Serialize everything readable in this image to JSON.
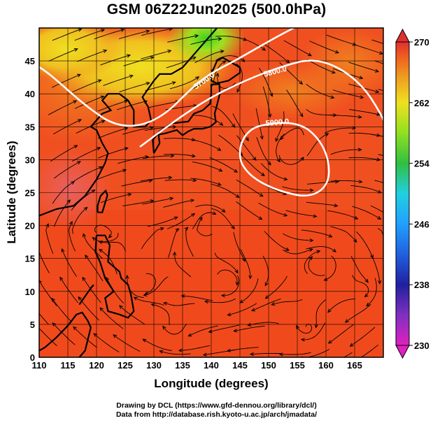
{
  "title": "GSM 06Z22Jun2025 (500.0hPa)",
  "axes": {
    "xlabel": "Longitude (degrees)",
    "ylabel": "Latitude  (degrees)",
    "xticks": [
      "110",
      "115",
      "120",
      "125",
      "130",
      "135",
      "140",
      "145",
      "150",
      "155",
      "160",
      "165"
    ],
    "yticks": [
      "0",
      "5",
      "10",
      "15",
      "20",
      "25",
      "30",
      "35",
      "40",
      "45"
    ],
    "xlim": [
      110,
      170
    ],
    "ylim": [
      0,
      50
    ]
  },
  "colorbar": {
    "ticks": [
      "230",
      "238",
      "246",
      "254",
      "262",
      "270"
    ],
    "range": [
      230,
      270
    ],
    "colors": [
      "#e020c0",
      "#2020a0",
      "#2080ff",
      "#20d0e0",
      "#30c030",
      "#a0e020",
      "#f0e020",
      "#f0a020",
      "#f05020",
      "#e03030"
    ]
  },
  "contours": [
    {
      "label": "5700.0",
      "lon": 138.5,
      "lat": 43.5
    },
    {
      "label": "5800.0",
      "lon": 150.5,
      "lat": 43.8
    },
    {
      "label": "5900.0",
      "lon": 152.5,
      "lat": 36.7
    }
  ],
  "credit": {
    "line1": "Drawing by DCL (https://www.gfd-dennou.org/library/dcl/)",
    "line2": "Data from http://database.rish.kyoto-u.ac.jp/arch/jmadata/"
  }
}
